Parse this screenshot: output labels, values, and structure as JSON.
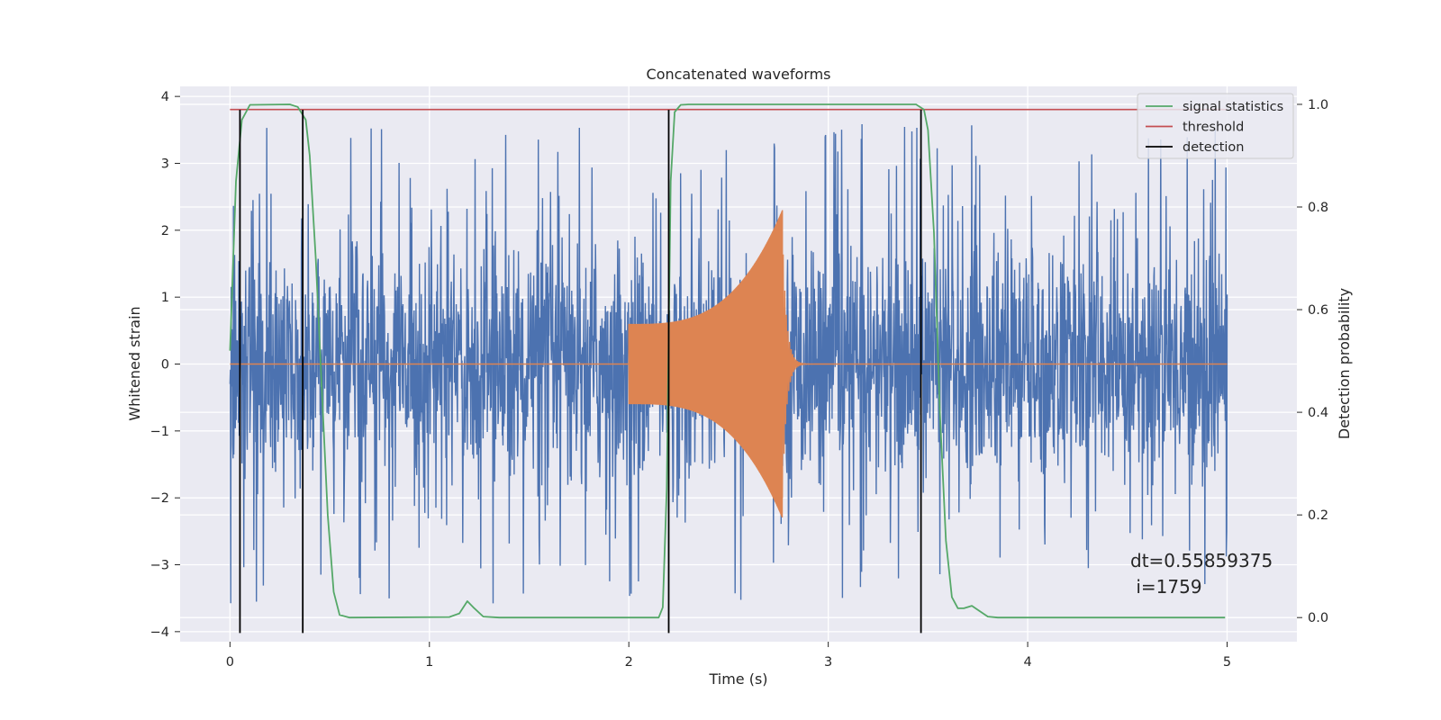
{
  "chart_data": {
    "type": "line",
    "title": "Concatenated waveforms",
    "xlabel": "Time (s)",
    "ylabel": "Whitened strain",
    "ylabel_right": "Detection probability",
    "xlim": [
      -0.25,
      5.35
    ],
    "ylim": [
      -4.15,
      4.15
    ],
    "ylim_right": [
      -0.047,
      1.035
    ],
    "x_ticks": [
      0,
      1,
      2,
      3,
      4,
      5
    ],
    "y_ticks": [
      -4,
      -3,
      -2,
      -1,
      0,
      1,
      2,
      3,
      4
    ],
    "y_ticks_right": [
      0.0,
      0.2,
      0.4,
      0.6,
      0.8,
      1.0
    ],
    "x_tick_labels": [
      "0",
      "1",
      "2",
      "3",
      "4",
      "5"
    ],
    "y_tick_labels": [
      "−4",
      "−3",
      "−2",
      "−1",
      "0",
      "1",
      "2",
      "3",
      "4"
    ],
    "y_tick_labels_right": [
      "0.0",
      "0.2",
      "0.4",
      "0.6",
      "0.8",
      "1.0"
    ],
    "grid": true,
    "legend_position": "top-right",
    "colors": {
      "background": "#eaeaf2",
      "noise": "#4c72b0",
      "injection": "#dd8452",
      "signal_statistics": "#55a868",
      "threshold": "#c44e52",
      "detection": "#000000"
    },
    "series": [
      {
        "name": "noise strain (left axis)",
        "kind": "random-noise",
        "x_range": [
          0,
          5
        ],
        "sigma": 0.9,
        "typical_extent": [
          -2.9,
          3.8
        ]
      },
      {
        "name": "injected waveform (left axis)",
        "kind": "chirp",
        "start": 2.0,
        "merger": 2.77,
        "end": 5.0,
        "start_amplitude": 0.6,
        "peak_amplitude": 2.3
      },
      {
        "name": "signal statistics",
        "axis": "right",
        "points": [
          [
            0,
            0.52
          ],
          [
            0.03,
            0.85
          ],
          [
            0.06,
            0.97
          ],
          [
            0.1,
            0.999
          ],
          [
            0.3,
            1.0
          ],
          [
            0.34,
            0.995
          ],
          [
            0.38,
            0.97
          ],
          [
            0.4,
            0.9
          ],
          [
            0.43,
            0.7
          ],
          [
            0.46,
            0.45
          ],
          [
            0.49,
            0.2
          ],
          [
            0.52,
            0.05
          ],
          [
            0.55,
            0.005
          ],
          [
            0.6,
            0.0
          ],
          [
            1.1,
            0.001
          ],
          [
            1.15,
            0.008
          ],
          [
            1.19,
            0.032
          ],
          [
            1.22,
            0.02
          ],
          [
            1.27,
            0.002
          ],
          [
            1.35,
            0.0
          ],
          [
            2.15,
            0.0
          ],
          [
            2.17,
            0.02
          ],
          [
            2.19,
            0.25
          ],
          [
            2.21,
            0.85
          ],
          [
            2.23,
            0.985
          ],
          [
            2.26,
            0.999
          ],
          [
            2.3,
            1.0
          ],
          [
            3.44,
            1.0
          ],
          [
            3.48,
            0.99
          ],
          [
            3.5,
            0.95
          ],
          [
            3.53,
            0.75
          ],
          [
            3.56,
            0.4
          ],
          [
            3.59,
            0.15
          ],
          [
            3.62,
            0.04
          ],
          [
            3.65,
            0.018
          ],
          [
            3.68,
            0.018
          ],
          [
            3.72,
            0.023
          ],
          [
            3.75,
            0.015
          ],
          [
            3.8,
            0.002
          ],
          [
            3.85,
            0.0
          ],
          [
            4.99,
            0.0
          ]
        ]
      },
      {
        "name": "threshold",
        "axis": "right",
        "value": 0.99
      },
      {
        "name": "detection",
        "axis": "left",
        "x": [
          0.05,
          0.365,
          2.2,
          3.465
        ],
        "y_range": [
          -4.02,
          3.8
        ]
      }
    ],
    "legend_entries": [
      "signal statistics",
      "threshold",
      "detection"
    ],
    "annotation": {
      "line1": "dt=0.55859375",
      "line2": " i=1759",
      "x": 4.5,
      "y": -3.1
    }
  }
}
